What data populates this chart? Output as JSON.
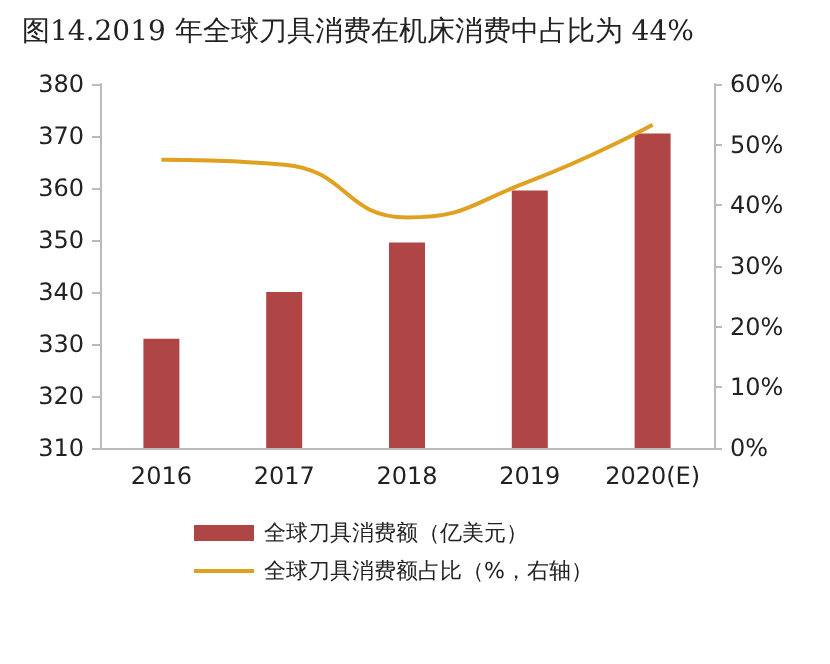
{
  "chart_data": {
    "type": "bar",
    "title": "图14.2019 年全球刀具消费在机床消费中占比为 44%",
    "categories": [
      "2016",
      "2017",
      "2018",
      "2019",
      "2020(E)"
    ],
    "series": [
      {
        "name": "全球刀具消费额（亿美元）",
        "color": "#b04545",
        "values": [
          331,
          340,
          349.5,
          359.5,
          370.5
        ]
      },
      {
        "name": "全球刀具消费额占比（%，右轴）",
        "type": "line",
        "axis": "y2",
        "color": "#e0a020",
        "values": [
          47.5,
          46.7,
          38,
          44,
          53.3
        ]
      }
    ],
    "ylim": [
      310,
      380
    ],
    "yticks": [
      310,
      320,
      330,
      340,
      350,
      360,
      370,
      380
    ],
    "y2lim": [
      0,
      60
    ],
    "y2ticks": [
      {
        "value": 0,
        "label": "0%"
      },
      {
        "value": 10,
        "label": "10%"
      },
      {
        "value": 20,
        "label": "20%"
      },
      {
        "value": 30,
        "label": "30%"
      },
      {
        "value": 40,
        "label": "40%"
      },
      {
        "value": 50,
        "label": "50%"
      },
      {
        "value": 60,
        "label": "60%"
      }
    ],
    "grid": false,
    "legend": "bottom",
    "marker": "none"
  }
}
